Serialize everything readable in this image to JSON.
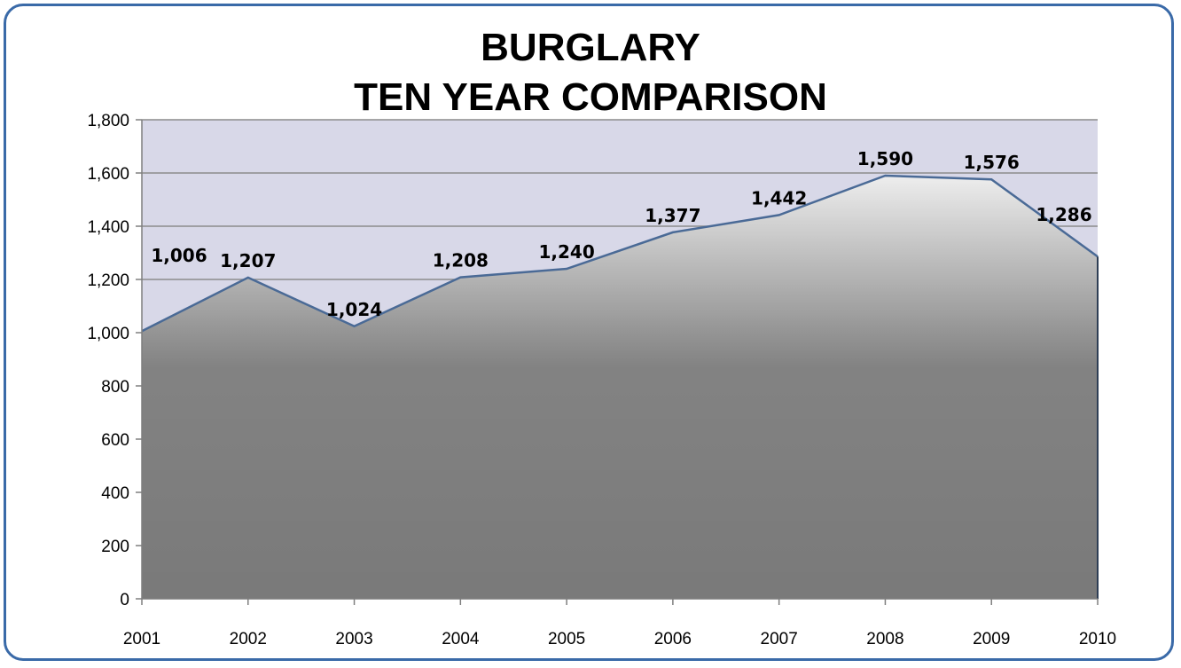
{
  "chart_data": {
    "type": "area",
    "title_lines": [
      "BURGLARY",
      "TEN YEAR COMPARISON"
    ],
    "categories": [
      "2001",
      "2002",
      "2003",
      "2004",
      "2005",
      "2006",
      "2007",
      "2008",
      "2009",
      "2010"
    ],
    "values": [
      1006,
      1207,
      1024,
      1208,
      1240,
      1377,
      1442,
      1590,
      1576,
      1286
    ],
    "data_labels": [
      "1,006",
      "1,207",
      "1,024",
      "1,208",
      "1,240",
      "1,377",
      "1,442",
      "1,590",
      "1,576",
      "1,286"
    ],
    "y_ticks": [
      0,
      200,
      400,
      600,
      800,
      1000,
      1200,
      1400,
      1600,
      1800
    ],
    "y_tick_labels": [
      "0",
      "200",
      "400",
      "600",
      "800",
      "1,000",
      "1,200",
      "1,400",
      "1,600",
      "1,800"
    ],
    "ylim": [
      0,
      1800
    ],
    "grid": true,
    "legend": "none",
    "colors": {
      "plot_background": "#d8d8e8",
      "area_fill": "#8a8a8a",
      "series_line": "#4a6a96",
      "gridline": "#8c8c8c",
      "frame_border": "#3a6aa8"
    }
  }
}
